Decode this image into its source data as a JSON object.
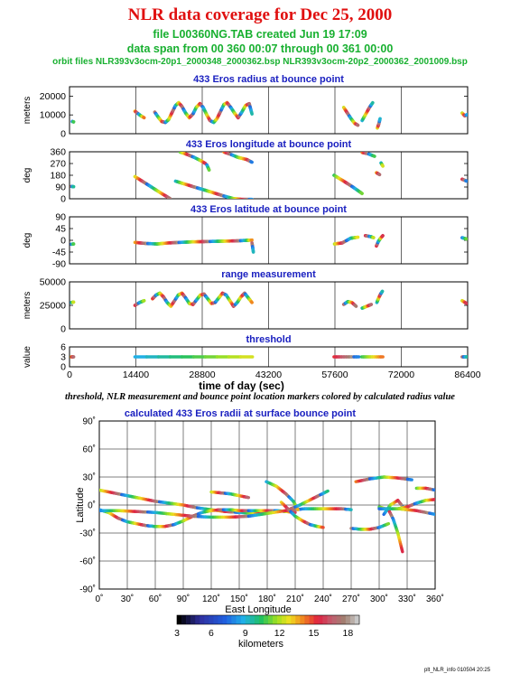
{
  "header": {
    "title": "NLR data coverage for Dec 25, 2000",
    "file_line": "file L00360NG.TAB created Jun 19 17:09",
    "span_line": "data span from 00 360 00:07 through 00 361 00:00",
    "orbit_line": "orbit files NLR393v3ocm-20p1_2000348_2000362.bsp NLR393v3ocm-20p2_2000362_2001009.bsp"
  },
  "caption": "threshold, NLR measurement and bounce point location markers colored by calculated radius value",
  "footer": "plt_NLR_info 010504 20:25",
  "colors": {
    "title": "#e01010",
    "subtitle": "#18b030",
    "panel_title": "#1a20c0"
  },
  "chart_data": [
    {
      "type": "scatter",
      "title": "433 Eros radius at bounce point",
      "ylabel": "meters",
      "xlim": [
        0,
        86400
      ],
      "ylim": [
        0,
        25000
      ],
      "yticks": [
        0,
        10000,
        20000
      ],
      "xticks": [
        0,
        14400,
        28800,
        43200,
        57600,
        72000,
        86400
      ],
      "segments": [
        {
          "x": [
            600,
            900
          ],
          "y": [
            6500,
            6300
          ]
        },
        {
          "x": [
            14200,
            14800,
            15500,
            16200
          ],
          "y": [
            12000,
            10800,
            9500,
            8500
          ]
        },
        {
          "x": [
            18500,
            19200,
            20000,
            20800,
            21500,
            22200,
            23000,
            23700,
            24400,
            25200,
            26000,
            26800,
            27500,
            28300,
            29000,
            29800,
            30500,
            31300,
            32000,
            32800,
            33500,
            34200,
            35000,
            35800,
            36600,
            37400,
            38200,
            39000,
            39600
          ],
          "y": [
            11500,
            9000,
            6500,
            6000,
            7500,
            11000,
            15000,
            16500,
            14500,
            11000,
            8500,
            10500,
            14000,
            16000,
            14000,
            10000,
            7000,
            6000,
            8000,
            12000,
            15500,
            16500,
            14000,
            11000,
            8500,
            11500,
            15000,
            16000,
            10500
          ]
        },
        {
          "x": [
            59500,
            60300,
            61100,
            61900,
            62600
          ],
          "y": [
            14000,
            11000,
            8000,
            5500,
            4500
          ]
        },
        {
          "x": [
            63500,
            64300,
            65100,
            65800
          ],
          "y": [
            7000,
            10500,
            14000,
            16500
          ]
        },
        {
          "x": [
            66800,
            67100,
            67400
          ],
          "y": [
            3000,
            5000,
            8000
          ]
        },
        {
          "x": [
            85200,
            85800,
            86300
          ],
          "y": [
            11000,
            9500,
            10200
          ]
        }
      ]
    },
    {
      "type": "scatter",
      "title": "433 Eros longitude at bounce point",
      "ylabel": "deg",
      "xlim": [
        0,
        86400
      ],
      "ylim": [
        0,
        360
      ],
      "yticks": [
        0,
        90,
        180,
        270,
        360
      ],
      "xticks": [
        0,
        14400,
        28800,
        43200,
        57600,
        72000,
        86400
      ],
      "segments": [
        {
          "x": [
            400,
            900
          ],
          "y": [
            95,
            92
          ]
        },
        {
          "x": [
            14200,
            16000,
            18000,
            20000,
            21800
          ],
          "y": [
            170,
            130,
            85,
            40,
            2
          ]
        },
        {
          "x": [
            23000,
            25000,
            27000,
            29500,
            31500,
            33500,
            35500,
            37500,
            39600
          ],
          "y": [
            135,
            113,
            91,
            65,
            43,
            21,
            2,
            -5,
            -5
          ]
        },
        {
          "x": [
            24000,
            25500,
            27000,
            28500,
            29500
          ],
          "y": [
            358,
            340,
            318,
            292,
            270
          ]
        },
        {
          "x": [
            29800,
            30300
          ],
          "y": [
            260,
            220
          ]
        },
        {
          "x": [
            33500,
            35000,
            36500,
            38500,
            39600
          ],
          "y": [
            358,
            340,
            318,
            300,
            280
          ]
        },
        {
          "x": [
            57400,
            59500,
            61500,
            63500
          ],
          "y": [
            180,
            135,
            90,
            40
          ]
        },
        {
          "x": [
            63500,
            64800,
            66200
          ],
          "y": [
            355,
            345,
            325
          ]
        },
        {
          "x": [
            66600,
            67300
          ],
          "y": [
            200,
            185
          ]
        },
        {
          "x": [
            67600,
            68000
          ],
          "y": [
            275,
            250
          ]
        },
        {
          "x": [
            85200,
            86200
          ],
          "y": [
            150,
            135
          ]
        }
      ]
    },
    {
      "type": "scatter",
      "title": "433 Eros latitude at bounce point",
      "ylabel": "deg",
      "xlim": [
        0,
        86400
      ],
      "ylim": [
        -90,
        90
      ],
      "yticks": [
        -90,
        -45,
        0,
        45,
        90
      ],
      "xticks": [
        0,
        14400,
        28800,
        43200,
        57600,
        72000,
        86400
      ],
      "segments": [
        {
          "x": [
            400,
            900
          ],
          "y": [
            -15,
            -14
          ]
        },
        {
          "x": [
            14200,
            16500,
            19000,
            21500,
            24000,
            26500,
            29000,
            31500,
            34000,
            36500,
            38500,
            39600
          ],
          "y": [
            -8,
            -12,
            -14,
            -10,
            -8,
            -6,
            -5,
            -4,
            -3,
            -2,
            0,
            1
          ]
        },
        {
          "x": [
            39600,
            39900
          ],
          "y": [
            -10,
            -45
          ]
        },
        {
          "x": [
            57500,
            59200,
            61000,
            62600
          ],
          "y": [
            -14,
            -10,
            8,
            12
          ]
        },
        {
          "x": [
            64200,
            65400,
            66000
          ],
          "y": [
            18,
            14,
            10
          ]
        },
        {
          "x": [
            66600,
            67000,
            67500,
            68000
          ],
          "y": [
            -22,
            -5,
            8,
            18
          ]
        },
        {
          "x": [
            85200,
            86200
          ],
          "y": [
            10,
            5
          ]
        }
      ]
    },
    {
      "type": "scatter",
      "title": "range measurement",
      "ylabel": "meters",
      "xlim": [
        0,
        86400
      ],
      "ylim": [
        0,
        50000
      ],
      "yticks": [
        0,
        25000,
        50000
      ],
      "xticks": [
        0,
        14400,
        28800,
        43200,
        57600,
        72000,
        86400
      ],
      "segments": [
        {
          "x": [
            400,
            900
          ],
          "y": [
            28000,
            28500
          ]
        },
        {
          "x": [
            14200,
            15200,
            16200
          ],
          "y": [
            25000,
            28000,
            30000
          ]
        },
        {
          "x": [
            18000,
            18800,
            19600,
            20400,
            21200,
            22000,
            22800,
            23600,
            24400,
            25200,
            26000,
            26800,
            27600,
            28400,
            29200,
            30000,
            30800,
            31600,
            32400,
            33200,
            34000,
            34800,
            35600,
            36400,
            37200,
            38000,
            38800,
            39600
          ],
          "y": [
            32000,
            36000,
            38000,
            34000,
            28000,
            24000,
            30000,
            36000,
            38000,
            33000,
            27000,
            26000,
            31000,
            36000,
            37000,
            32000,
            27000,
            28000,
            33000,
            38000,
            36000,
            30000,
            24000,
            28000,
            34000,
            38000,
            33000,
            28000
          ]
        },
        {
          "x": [
            59500,
            60400,
            61300,
            62200
          ],
          "y": [
            26000,
            29000,
            28000,
            24000
          ]
        },
        {
          "x": [
            63500,
            64500,
            65500
          ],
          "y": [
            22000,
            24000,
            26000
          ]
        },
        {
          "x": [
            66700,
            67100,
            67500,
            67900
          ],
          "y": [
            28000,
            33000,
            37000,
            40000
          ]
        },
        {
          "x": [
            85200,
            86200
          ],
          "y": [
            30000,
            27000
          ]
        }
      ]
    },
    {
      "type": "scatter",
      "title": "threshold",
      "ylabel": "value",
      "xlabel": "time of day (sec)",
      "xlim": [
        0,
        86400
      ],
      "ylim": [
        0,
        6
      ],
      "yticks": [
        0,
        3,
        6
      ],
      "xticks": [
        0,
        14400,
        28800,
        43200,
        57600,
        72000,
        86400
      ],
      "segments": [
        {
          "x": [
            400,
            900
          ],
          "y": [
            3,
            3
          ]
        },
        {
          "x": [
            14200,
            39700
          ],
          "y": [
            3,
            3
          ]
        },
        {
          "x": [
            57400,
            62800
          ],
          "y": [
            3,
            3
          ]
        },
        {
          "x": [
            63400,
            68000
          ],
          "y": [
            3,
            3
          ]
        },
        {
          "x": [
            85200,
            86300
          ],
          "y": [
            3,
            3
          ]
        }
      ]
    },
    {
      "type": "scatter",
      "title": "calculated 433 Eros radii at surface bounce point",
      "xlabel": "East Longitude",
      "ylabel": "Latitude",
      "xlim": [
        0,
        360
      ],
      "ylim": [
        -90,
        90
      ],
      "xticks": [
        0,
        30,
        60,
        90,
        120,
        150,
        180,
        210,
        240,
        270,
        300,
        330,
        360
      ],
      "yticks": [
        -90,
        -60,
        -30,
        0,
        30,
        60,
        90
      ],
      "tick_labels_x": [
        "0˚",
        "30˚",
        "60˚",
        "90˚",
        "120˚",
        "150˚",
        "180˚",
        "210˚",
        "240˚",
        "270˚",
        "300˚",
        "330˚",
        "360˚"
      ],
      "tick_labels_y": [
        "-90˚",
        "-60˚",
        "-30˚",
        "0˚",
        "30˚",
        "60˚",
        "90˚"
      ],
      "segments": [
        {
          "x": [
            0,
            15,
            30,
            45,
            60,
            75,
            90,
            105,
            120,
            135,
            150,
            165,
            175
          ],
          "y": [
            16,
            13,
            10,
            7,
            4,
            2,
            0,
            -3,
            -5,
            -7,
            -8,
            -9,
            -9
          ]
        },
        {
          "x": [
            0,
            10,
            20,
            30,
            40,
            50,
            60,
            70,
            80,
            90,
            100,
            110,
            120,
            130,
            140,
            150,
            160,
            170,
            180,
            190,
            200,
            210
          ],
          "y": [
            -5,
            -8,
            -14,
            -18,
            -20,
            -22,
            -23,
            -23,
            -21,
            -17,
            -12,
            -8,
            -6,
            -5,
            -5,
            -6,
            -6,
            -6,
            -6,
            -6,
            -7,
            -8
          ]
        },
        {
          "x": [
            0,
            20,
            40,
            60,
            80,
            100,
            120,
            140,
            160,
            180,
            200,
            220,
            240,
            260,
            270
          ],
          "y": [
            -6,
            -6,
            -7,
            -8,
            -10,
            -12,
            -13,
            -13,
            -12,
            -9,
            -6,
            -4,
            -4,
            -4,
            -5
          ]
        },
        {
          "x": [
            120,
            130,
            140,
            150,
            160
          ],
          "y": [
            14,
            13,
            12,
            10,
            8
          ]
        },
        {
          "x": [
            179,
            190,
            200,
            208,
            213
          ],
          "y": [
            25,
            20,
            12,
            4,
            -5
          ]
        },
        {
          "x": [
            205,
            215,
            225,
            235,
            245
          ],
          "y": [
            -4,
            0,
            5,
            10,
            15
          ]
        },
        {
          "x": [
            195,
            203,
            210,
            218,
            226,
            234,
            240
          ],
          "y": [
            3,
            -5,
            -12,
            -17,
            -21,
            -23,
            -24
          ]
        },
        {
          "x": [
            270,
            280,
            290,
            300,
            310
          ],
          "y": [
            -25,
            -26,
            -26,
            -24,
            -20
          ]
        },
        {
          "x": [
            275,
            290,
            305,
            320,
            335
          ],
          "y": [
            25,
            28,
            30,
            29,
            27
          ]
        },
        {
          "x": [
            300,
            310,
            315,
            320,
            325
          ],
          "y": [
            -2,
            -5,
            -15,
            -30,
            -50
          ]
        },
        {
          "x": [
            305,
            312,
            320,
            328
          ],
          "y": [
            -10,
            0,
            5,
            -5
          ]
        },
        {
          "x": [
            320,
            330,
            340,
            350,
            360
          ],
          "y": [
            -4,
            -2,
            2,
            5,
            6
          ]
        },
        {
          "x": [
            300,
            320,
            340,
            360
          ],
          "y": [
            -4,
            -4,
            -6,
            -10
          ]
        },
        {
          "x": [
            340,
            350,
            360
          ],
          "y": [
            18,
            18,
            16
          ]
        }
      ],
      "colorbar": {
        "label": "kilometers",
        "min": 3,
        "max": 19,
        "ticks": [
          3,
          6,
          9,
          12,
          15,
          18
        ]
      }
    }
  ]
}
